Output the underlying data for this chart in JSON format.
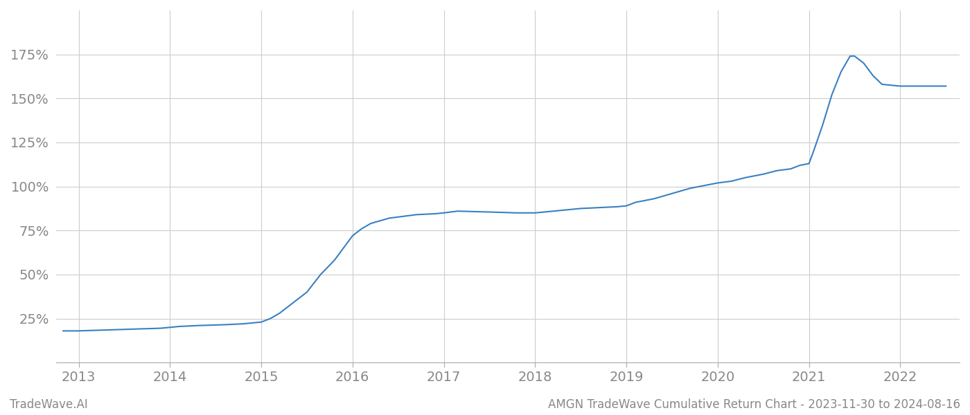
{
  "title_right": "AMGN TradeWave Cumulative Return Chart - 2023-11-30 to 2024-08-16",
  "title_left": "TradeWave.AI",
  "line_color": "#3a80c0",
  "background_color": "#ffffff",
  "grid_color": "#cccccc",
  "x_years": [
    2013,
    2014,
    2015,
    2016,
    2017,
    2018,
    2019,
    2020,
    2021,
    2022
  ],
  "data_points": [
    [
      2012.83,
      18
    ],
    [
      2013.0,
      18
    ],
    [
      2013.3,
      18.5
    ],
    [
      2013.6,
      19
    ],
    [
      2013.9,
      19.5
    ],
    [
      2014.0,
      20
    ],
    [
      2014.1,
      20.5
    ],
    [
      2014.3,
      21
    ],
    [
      2014.6,
      21.5
    ],
    [
      2014.8,
      22
    ],
    [
      2015.0,
      23
    ],
    [
      2015.1,
      25
    ],
    [
      2015.2,
      28
    ],
    [
      2015.35,
      34
    ],
    [
      2015.5,
      40
    ],
    [
      2015.65,
      50
    ],
    [
      2015.8,
      58
    ],
    [
      2015.9,
      65
    ],
    [
      2016.0,
      72
    ],
    [
      2016.1,
      76
    ],
    [
      2016.2,
      79
    ],
    [
      2016.4,
      82
    ],
    [
      2016.7,
      84
    ],
    [
      2016.9,
      84.5
    ],
    [
      2017.0,
      85
    ],
    [
      2017.15,
      86
    ],
    [
      2017.5,
      85.5
    ],
    [
      2017.8,
      85
    ],
    [
      2018.0,
      85
    ],
    [
      2018.2,
      86
    ],
    [
      2018.4,
      87
    ],
    [
      2018.5,
      87.5
    ],
    [
      2018.7,
      88
    ],
    [
      2018.9,
      88.5
    ],
    [
      2019.0,
      89
    ],
    [
      2019.1,
      91
    ],
    [
      2019.3,
      93
    ],
    [
      2019.5,
      96
    ],
    [
      2019.7,
      99
    ],
    [
      2019.9,
      101
    ],
    [
      2020.0,
      102
    ],
    [
      2020.15,
      103
    ],
    [
      2020.3,
      105
    ],
    [
      2020.5,
      107
    ],
    [
      2020.65,
      109
    ],
    [
      2020.8,
      110
    ],
    [
      2020.9,
      112
    ],
    [
      2021.0,
      113
    ],
    [
      2021.05,
      120
    ],
    [
      2021.15,
      135
    ],
    [
      2021.25,
      152
    ],
    [
      2021.35,
      165
    ],
    [
      2021.45,
      174
    ],
    [
      2021.5,
      174
    ],
    [
      2021.6,
      170
    ],
    [
      2021.7,
      163
    ],
    [
      2021.8,
      158
    ],
    [
      2022.0,
      157
    ],
    [
      2022.3,
      157
    ],
    [
      2022.5,
      157
    ]
  ],
  "yticks": [
    25,
    50,
    75,
    100,
    125,
    150,
    175
  ],
  "ylim": [
    0,
    200
  ],
  "xlim": [
    2012.75,
    2022.65
  ],
  "tick_label_color": "#888888",
  "tick_fontsize": 14,
  "footer_fontsize": 12
}
